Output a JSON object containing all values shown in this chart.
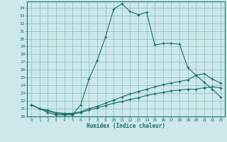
{
  "xlabel": "Humidex (Indice chaleur)",
  "bg_color": "#cce8ea",
  "grid_color": "#88bbbb",
  "line_color": "#1a6e6a",
  "spine_color": "#1a6e6a",
  "xlim": [
    -0.5,
    23.5
  ],
  "ylim": [
    20,
    34.8
  ],
  "xticks": [
    0,
    1,
    2,
    3,
    4,
    5,
    6,
    7,
    8,
    9,
    10,
    11,
    12,
    13,
    14,
    15,
    16,
    17,
    18,
    19,
    20,
    21,
    22,
    23
  ],
  "yticks": [
    20,
    21,
    22,
    23,
    24,
    25,
    26,
    27,
    28,
    29,
    30,
    31,
    32,
    33,
    34
  ],
  "curve1_x": [
    0,
    1,
    2,
    3,
    4,
    5,
    6,
    7,
    8,
    9,
    10,
    11,
    12,
    13,
    14,
    15,
    16,
    17,
    18,
    19,
    20,
    21,
    22,
    23
  ],
  "curve1_y": [
    21.5,
    21.0,
    20.5,
    20.2,
    20.2,
    20.2,
    21.5,
    24.8,
    27.2,
    30.2,
    33.8,
    34.5,
    33.5,
    33.1,
    33.4,
    29.2,
    29.4,
    29.4,
    29.3,
    26.3,
    25.3,
    24.4,
    23.5,
    22.5
  ],
  "curve2_x": [
    0,
    1,
    2,
    3,
    4,
    5,
    6,
    7,
    8,
    9,
    10,
    11,
    12,
    13,
    14,
    15,
    16,
    17,
    18,
    19,
    20,
    21,
    22,
    23
  ],
  "curve2_y": [
    21.5,
    21.0,
    20.8,
    20.5,
    20.4,
    20.4,
    20.6,
    21.0,
    21.3,
    21.7,
    22.1,
    22.5,
    22.9,
    23.2,
    23.5,
    23.8,
    24.1,
    24.3,
    24.5,
    24.7,
    25.3,
    25.5,
    24.8,
    24.3
  ],
  "curve3_x": [
    0,
    1,
    2,
    3,
    4,
    5,
    6,
    7,
    8,
    9,
    10,
    11,
    12,
    13,
    14,
    15,
    16,
    17,
    18,
    19,
    20,
    21,
    22,
    23
  ],
  "curve3_y": [
    21.5,
    21.0,
    20.7,
    20.4,
    20.3,
    20.3,
    20.5,
    20.8,
    21.1,
    21.4,
    21.7,
    21.9,
    22.2,
    22.4,
    22.7,
    22.9,
    23.1,
    23.3,
    23.4,
    23.5,
    23.5,
    23.7,
    23.8,
    23.7
  ]
}
